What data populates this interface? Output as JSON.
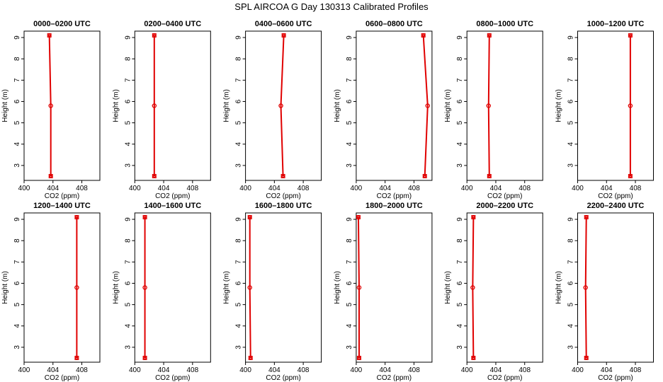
{
  "figure": {
    "title": "SPL AIRCOA G  Day 130313  Calibrated Profiles"
  },
  "chart_data": [
    {
      "type": "line",
      "title": "0000–0200 UTC",
      "xlabel": "CO2 (ppm)",
      "ylabel": "Height (m)",
      "xlim": [
        400,
        410.5
      ],
      "ylim": [
        2.3,
        9.3
      ],
      "xticks": [
        "400",
        "404",
        "408"
      ],
      "yticks": [
        "3",
        "4",
        "5",
        "6",
        "7",
        "8",
        "9"
      ],
      "series": [
        {
          "heights": [
            2.5,
            5.8,
            9.1
          ],
          "values": [
            403.7,
            403.7,
            403.5
          ]
        }
      ]
    },
    {
      "type": "line",
      "title": "0200–0400 UTC",
      "xlabel": "CO2 (ppm)",
      "ylabel": "Height (m)",
      "xlim": [
        400,
        410.5
      ],
      "ylim": [
        2.3,
        9.3
      ],
      "xticks": [
        "400",
        "404",
        "408"
      ],
      "yticks": [
        "3",
        "4",
        "5",
        "6",
        "7",
        "8",
        "9"
      ],
      "series": [
        {
          "heights": [
            2.5,
            5.8,
            9.1
          ],
          "values": [
            402.7,
            402.7,
            402.7
          ]
        }
      ]
    },
    {
      "type": "line",
      "title": "0400–0600 UTC",
      "xlabel": "CO2 (ppm)",
      "ylabel": "Height (m)",
      "xlim": [
        400,
        410.5
      ],
      "ylim": [
        2.3,
        9.3
      ],
      "xticks": [
        "400",
        "404",
        "408"
      ],
      "yticks": [
        "3",
        "4",
        "5",
        "6",
        "7",
        "8",
        "9"
      ],
      "series": [
        {
          "heights": [
            2.5,
            5.8,
            9.1
          ],
          "values": [
            405.2,
            404.9,
            405.3
          ]
        }
      ]
    },
    {
      "type": "line",
      "title": "0600–0800 UTC",
      "xlabel": "CO2 (ppm)",
      "ylabel": "Height (m)",
      "xlim": [
        400,
        410.5
      ],
      "ylim": [
        2.3,
        9.3
      ],
      "xticks": [
        "400",
        "404",
        "408"
      ],
      "yticks": [
        "3",
        "4",
        "5",
        "6",
        "7",
        "8",
        "9"
      ],
      "series": [
        {
          "heights": [
            2.5,
            5.8,
            9.1
          ],
          "values": [
            409.5,
            409.9,
            409.3
          ]
        }
      ]
    },
    {
      "type": "line",
      "title": "0800–1000 UTC",
      "xlabel": "CO2 (ppm)",
      "ylabel": "Height (m)",
      "xlim": [
        400,
        410.5
      ],
      "ylim": [
        2.3,
        9.3
      ],
      "xticks": [
        "400",
        "404",
        "408"
      ],
      "yticks": [
        "3",
        "4",
        "5",
        "6",
        "7",
        "8",
        "9"
      ],
      "series": [
        {
          "heights": [
            2.5,
            5.8,
            9.1
          ],
          "values": [
            403.1,
            403.0,
            403.1
          ]
        }
      ]
    },
    {
      "type": "line",
      "title": "1000–1200 UTC",
      "xlabel": "CO2 (ppm)",
      "ylabel": "Height (m)",
      "xlim": [
        400,
        410.5
      ],
      "ylim": [
        2.3,
        9.3
      ],
      "xticks": [
        "400",
        "404",
        "408"
      ],
      "yticks": [
        "3",
        "4",
        "5",
        "6",
        "7",
        "8",
        "9"
      ],
      "series": [
        {
          "heights": [
            2.5,
            5.8,
            9.1
          ],
          "values": [
            407.3,
            407.3,
            407.3
          ]
        }
      ]
    },
    {
      "type": "line",
      "title": "1200–1400 UTC",
      "xlabel": "CO2 (ppm)",
      "ylabel": "Height (m)",
      "xlim": [
        400,
        410.5
      ],
      "ylim": [
        2.3,
        9.3
      ],
      "xticks": [
        "400",
        "404",
        "408"
      ],
      "yticks": [
        "3",
        "4",
        "5",
        "6",
        "7",
        "8",
        "9"
      ],
      "series": [
        {
          "heights": [
            2.5,
            5.8,
            9.1
          ],
          "values": [
            407.3,
            407.3,
            407.3
          ]
        }
      ]
    },
    {
      "type": "line",
      "title": "1400–1600 UTC",
      "xlabel": "CO2 (ppm)",
      "ylabel": "Height (m)",
      "xlim": [
        400,
        410.5
      ],
      "ylim": [
        2.3,
        9.3
      ],
      "xticks": [
        "400",
        "404",
        "408"
      ],
      "yticks": [
        "3",
        "4",
        "5",
        "6",
        "7",
        "8",
        "9"
      ],
      "series": [
        {
          "heights": [
            2.5,
            5.8,
            9.1
          ],
          "values": [
            401.4,
            401.4,
            401.4
          ]
        }
      ]
    },
    {
      "type": "line",
      "title": "1600–1800 UTC",
      "xlabel": "CO2 (ppm)",
      "ylabel": "Height (m)",
      "xlim": [
        400,
        410.5
      ],
      "ylim": [
        2.3,
        9.3
      ],
      "xticks": [
        "400",
        "404",
        "408"
      ],
      "yticks": [
        "3",
        "4",
        "5",
        "6",
        "7",
        "8",
        "9"
      ],
      "series": [
        {
          "heights": [
            2.5,
            5.8,
            9.1
          ],
          "values": [
            400.7,
            400.6,
            400.6
          ]
        }
      ]
    },
    {
      "type": "line",
      "title": "1800–2000 UTC",
      "xlabel": "CO2 (ppm)",
      "ylabel": "Height (m)",
      "xlim": [
        400,
        410.5
      ],
      "ylim": [
        2.3,
        9.3
      ],
      "xticks": [
        "400",
        "404",
        "408"
      ],
      "yticks": [
        "3",
        "4",
        "5",
        "6",
        "7",
        "8",
        "9"
      ],
      "series": [
        {
          "heights": [
            2.5,
            5.8,
            9.1
          ],
          "values": [
            400.4,
            400.4,
            400.3
          ]
        }
      ]
    },
    {
      "type": "line",
      "title": "2000–2200 UTC",
      "xlabel": "CO2 (ppm)",
      "ylabel": "Height (m)",
      "xlim": [
        400,
        410.5
      ],
      "ylim": [
        2.3,
        9.3
      ],
      "xticks": [
        "400",
        "404",
        "408"
      ],
      "yticks": [
        "3",
        "4",
        "5",
        "6",
        "7",
        "8",
        "9"
      ],
      "series": [
        {
          "heights": [
            2.5,
            5.8,
            9.1
          ],
          "values": [
            400.9,
            400.8,
            400.9
          ]
        }
      ]
    },
    {
      "type": "line",
      "title": "2200–2400 UTC",
      "xlabel": "CO2 (ppm)",
      "ylabel": "Height (m)",
      "xlim": [
        400,
        410.5
      ],
      "ylim": [
        2.3,
        9.3
      ],
      "xticks": [
        "400",
        "404",
        "408"
      ],
      "yticks": [
        "3",
        "4",
        "5",
        "6",
        "7",
        "8",
        "9"
      ],
      "series": [
        {
          "heights": [
            2.5,
            5.8,
            9.1
          ],
          "values": [
            401.2,
            401.1,
            401.2
          ]
        }
      ]
    }
  ]
}
